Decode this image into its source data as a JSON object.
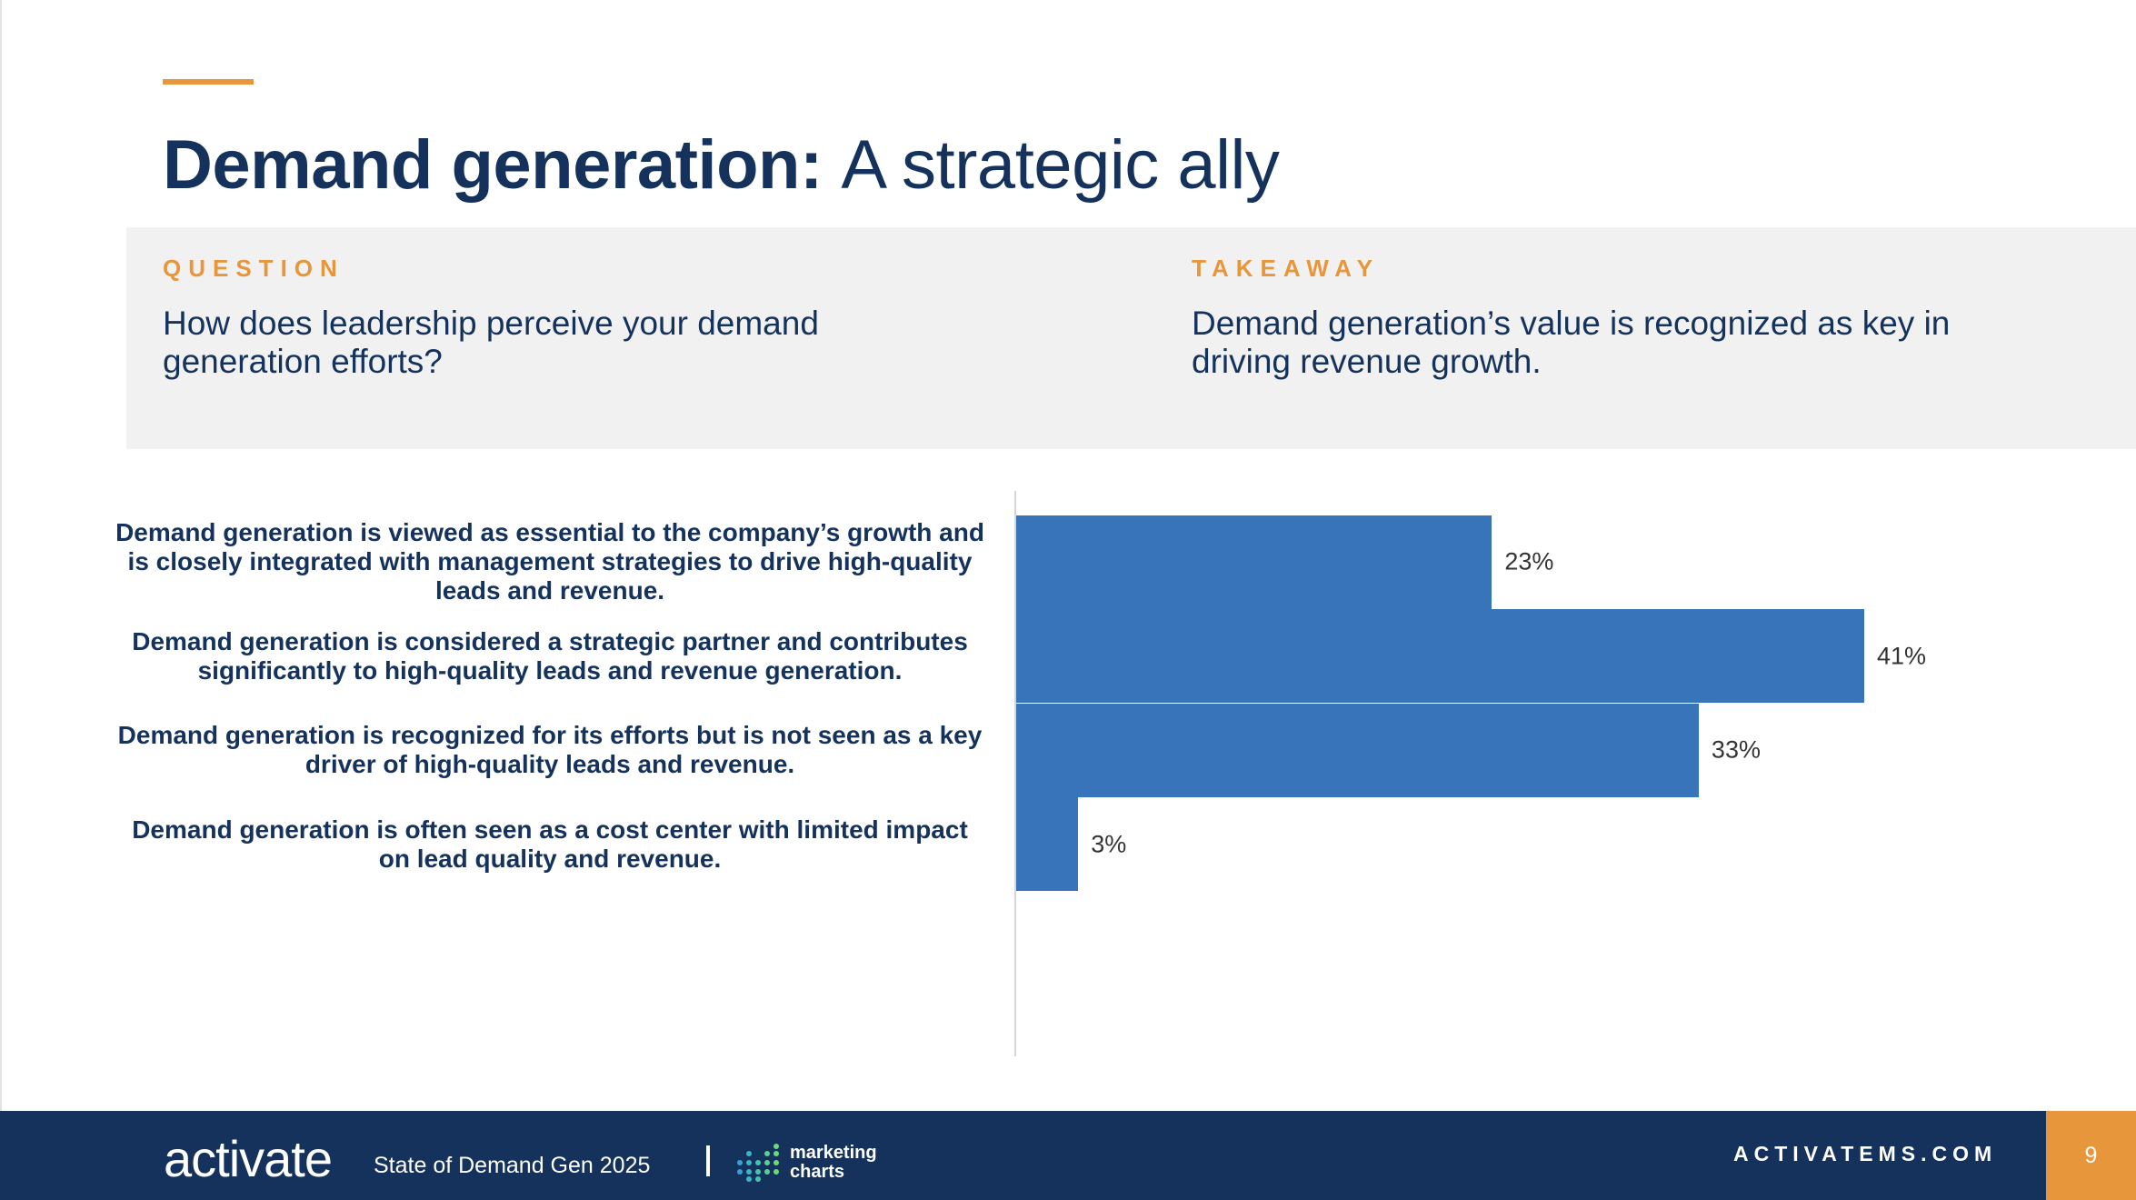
{
  "slide": {
    "title_bold": "Demand generation:",
    "title_light": "A strategic ally"
  },
  "question": {
    "label": "QUESTION",
    "text": "How does leadership perceive your demand generation efforts?"
  },
  "takeaway": {
    "label": "TAKEAWAY",
    "text": "Demand generation’s value is recognized as key in driving revenue growth."
  },
  "chart_data": {
    "type": "bar",
    "orientation": "horizontal",
    "categories": [
      "Demand generation is viewed as essential to the company’s growth and is closely integrated with management strategies to drive high-quality leads and revenue.",
      "Demand generation is considered a strategic partner and contributes significantly to high-quality leads and revenue generation.",
      "Demand generation is recognized for its efforts but is not seen as a key driver of high-quality leads and revenue.",
      "Demand generation is often seen as a cost center with limited impact on lead quality and revenue."
    ],
    "values": [
      23,
      41,
      33,
      3
    ],
    "value_labels": [
      "23%",
      "41%",
      "33%",
      "3%"
    ],
    "xlim": [
      0,
      45
    ],
    "unit": "%",
    "bar_color": "#3874b9"
  },
  "footer": {
    "logo": "activate",
    "report": "State of Demand Gen 2025",
    "partner_line1": "marketing",
    "partner_line2": "charts",
    "site": "ACTIVATEMS.COM",
    "page_number": "9"
  },
  "colors": {
    "navy": "#14325c",
    "orange": "#e8963c",
    "panel": "#f1f1f1"
  }
}
